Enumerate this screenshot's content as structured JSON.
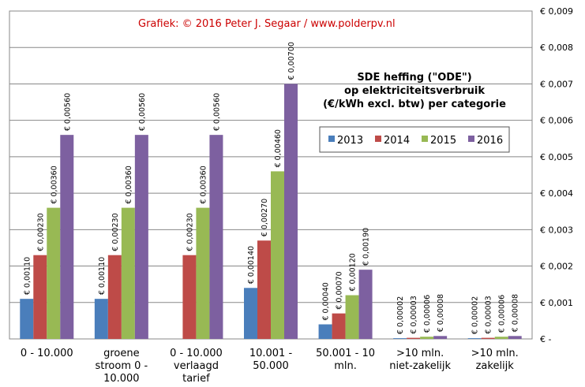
{
  "credit": "Grafiek:  © 2016 Peter J. Segaar / www.polderpv.nl",
  "chart_data": {
    "type": "bar",
    "title_lines": [
      "SDE heffing (\"ODE\")",
      "op elektriciteitsverbruik",
      "(€/kWh excl. btw) per categorie"
    ],
    "categories": [
      [
        "0 - 10.000"
      ],
      [
        "groene",
        "stroom 0 -",
        "10.000"
      ],
      [
        "0 - 10.000",
        "verlaagd",
        "tarief"
      ],
      [
        "10.001 -",
        "50.000"
      ],
      [
        "50.001 - 10",
        "mln."
      ],
      [
        ">10 mln.",
        "niet-zakelijk"
      ],
      [
        ">10 mln.",
        "zakelijk"
      ]
    ],
    "series": [
      {
        "name": "2013",
        "color": "#4a7ebb",
        "values": [
          0.0011,
          0.0011,
          null,
          0.0014,
          0.0004,
          2e-05,
          2e-05
        ],
        "labels": [
          "€ 0,00110",
          "€ 0,00110",
          "",
          "€ 0,00140",
          "€ 0,00040",
          "€ 0,00002",
          "€ 0,00002"
        ]
      },
      {
        "name": "2014",
        "color": "#be4b48",
        "values": [
          0.0023,
          0.0023,
          0.0023,
          0.0027,
          0.0007,
          3e-05,
          3e-05
        ],
        "labels": [
          "€ 0,00230",
          "€ 0,00230",
          "€ 0,00230",
          "€ 0,00270",
          "€ 0,00070",
          "€ 0,00003",
          "€ 0,00003"
        ]
      },
      {
        "name": "2015",
        "color": "#98b954",
        "values": [
          0.0036,
          0.0036,
          0.0036,
          0.0046,
          0.0012,
          6e-05,
          6e-05
        ],
        "labels": [
          "€ 0,00360",
          "€ 0,00360",
          "€ 0,00360",
          "€ 0,00460",
          "€ 0,00120",
          "€ 0,00006",
          "€ 0,00006"
        ]
      },
      {
        "name": "2016",
        "color": "#7d60a0",
        "values": [
          0.0056,
          0.0056,
          0.0056,
          0.007,
          0.0019,
          8e-05,
          8e-05
        ],
        "labels": [
          "€ 0,00560",
          "€ 0,00560",
          "€ 0,00560",
          "€ 0,00700",
          "€ 0,00190",
          "€ 0,00008",
          "€ 0,00008"
        ]
      }
    ],
    "yticks": [
      0,
      0.001,
      0.002,
      0.003,
      0.004,
      0.005,
      0.006,
      0.007,
      0.008,
      0.009
    ],
    "ytick_labels": [
      "€ -",
      "€ 0,001",
      "€ 0,002",
      "€ 0,003",
      "€ 0,004",
      "€ 0,005",
      "€ 0,006",
      "€ 0,007",
      "€ 0,008",
      "€ 0,009"
    ],
    "ylim": [
      0,
      0.009
    ],
    "yaxis_side": "right",
    "grid": true,
    "legend_position": "top-right"
  }
}
